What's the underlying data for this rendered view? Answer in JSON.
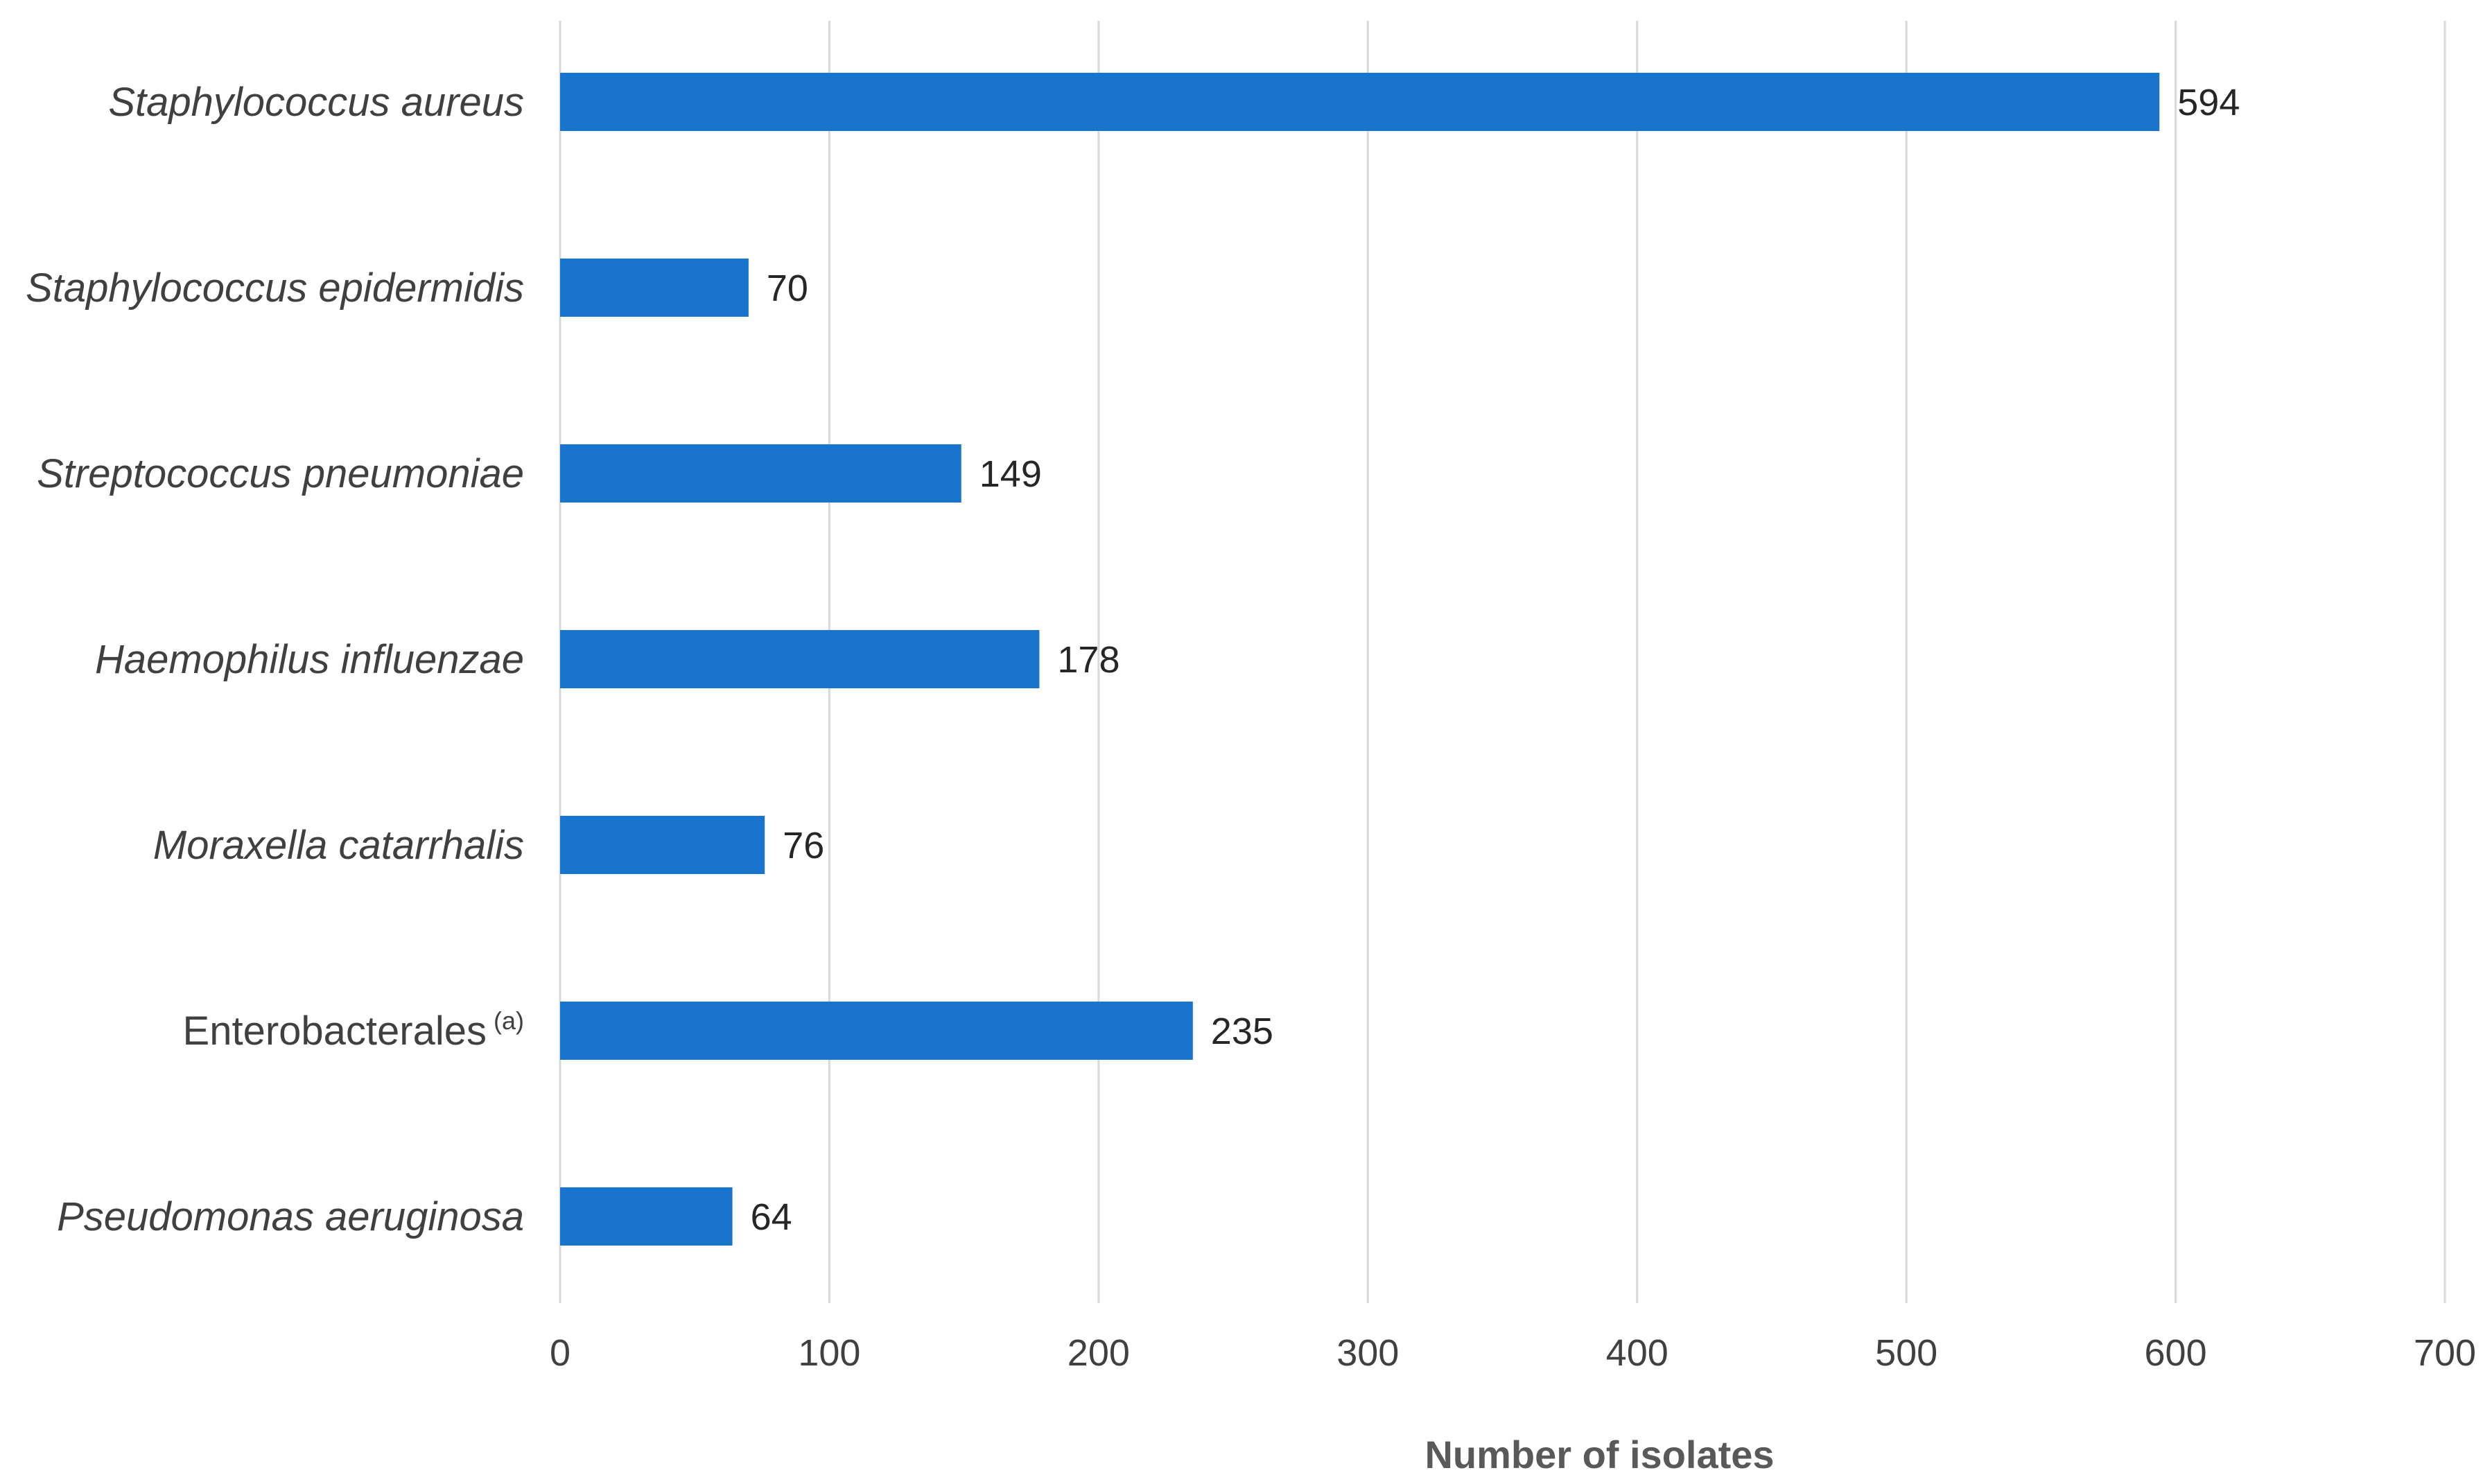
{
  "chart_data": {
    "type": "bar",
    "orientation": "horizontal",
    "categories": [
      {
        "name": "Staphylococcus aureus",
        "italic": true,
        "superscript": ""
      },
      {
        "name": "Staphylococcus epidermidis",
        "italic": true,
        "superscript": ""
      },
      {
        "name": "Streptococcus pneumoniae",
        "italic": true,
        "superscript": ""
      },
      {
        "name": "Haemophilus influenzae",
        "italic": true,
        "superscript": ""
      },
      {
        "name": "Moraxella catarrhalis",
        "italic": true,
        "superscript": ""
      },
      {
        "name": "Enterobacterales",
        "italic": false,
        "superscript": "(a)"
      },
      {
        "name": "Pseudomonas aeruginosa",
        "italic": true,
        "superscript": ""
      }
    ],
    "values": [
      594,
      70,
      149,
      178,
      76,
      235,
      64
    ],
    "xlabel": "Number of isolates",
    "ylabel": "",
    "xlim": [
      0,
      700
    ],
    "xticks": [
      0,
      100,
      200,
      300,
      400,
      500,
      600,
      700
    ],
    "grid": true,
    "data_labels": true,
    "colors": {
      "bar": "#1874CD",
      "grid": "#D9D9D9"
    }
  }
}
